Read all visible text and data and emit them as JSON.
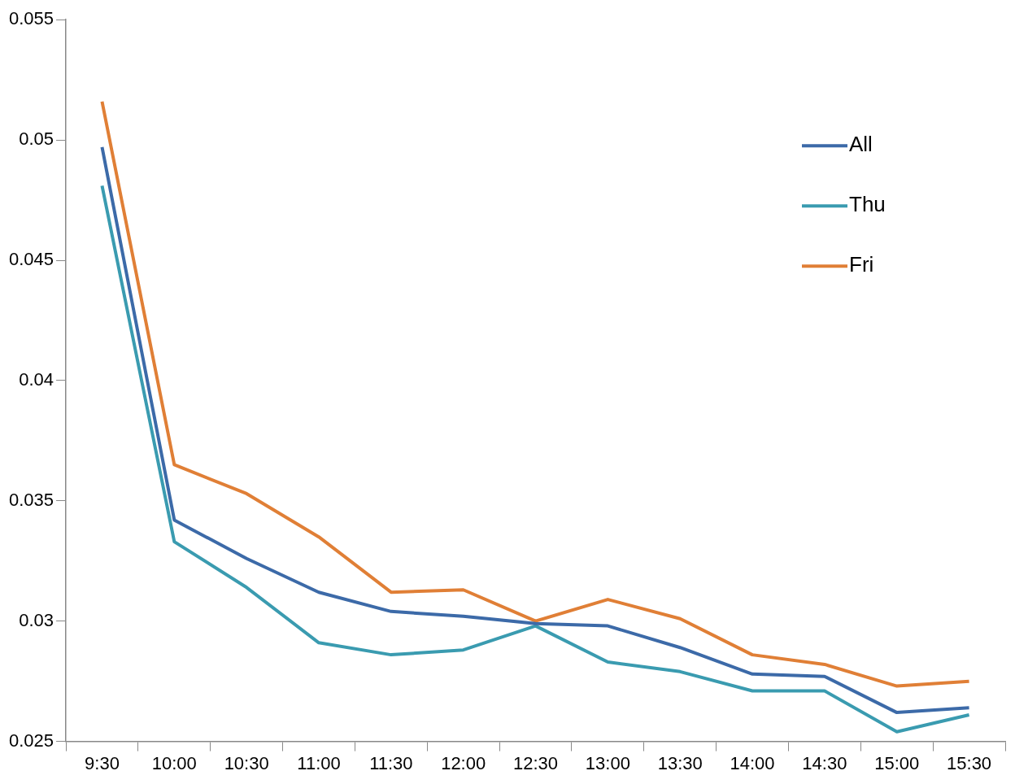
{
  "chart_data": {
    "type": "line",
    "categories": [
      "9:30",
      "10:00",
      "10:30",
      "11:00",
      "11:30",
      "12:00",
      "12:30",
      "13:00",
      "13:30",
      "14:00",
      "14:30",
      "15:00",
      "15:30"
    ],
    "series": [
      {
        "name": "All",
        "color": "#3c6aa8",
        "values": [
          0.0497,
          0.0342,
          0.0326,
          0.0312,
          0.0304,
          0.0302,
          0.0299,
          0.0298,
          0.0289,
          0.0278,
          0.0277,
          0.0262,
          0.0264
        ]
      },
      {
        "name": "Thu",
        "color": "#3a9bb0",
        "values": [
          0.0481,
          0.0333,
          0.0314,
          0.0291,
          0.0286,
          0.0288,
          0.0298,
          0.0283,
          0.0279,
          0.0271,
          0.0271,
          0.0254,
          0.0261
        ]
      },
      {
        "name": "Fri",
        "color": "#e07f36",
        "values": [
          0.0516,
          0.0365,
          0.0353,
          0.0335,
          0.0312,
          0.0313,
          0.03,
          0.0309,
          0.0301,
          0.0286,
          0.0282,
          0.0273,
          0.0275
        ]
      }
    ],
    "ylim": [
      0.025,
      0.055
    ],
    "yticks": [
      0.025,
      0.03,
      0.035,
      0.04,
      0.045,
      0.05,
      0.055
    ],
    "grid": false,
    "legend": "top right",
    "marker": "none",
    "line_style": "solid"
  }
}
